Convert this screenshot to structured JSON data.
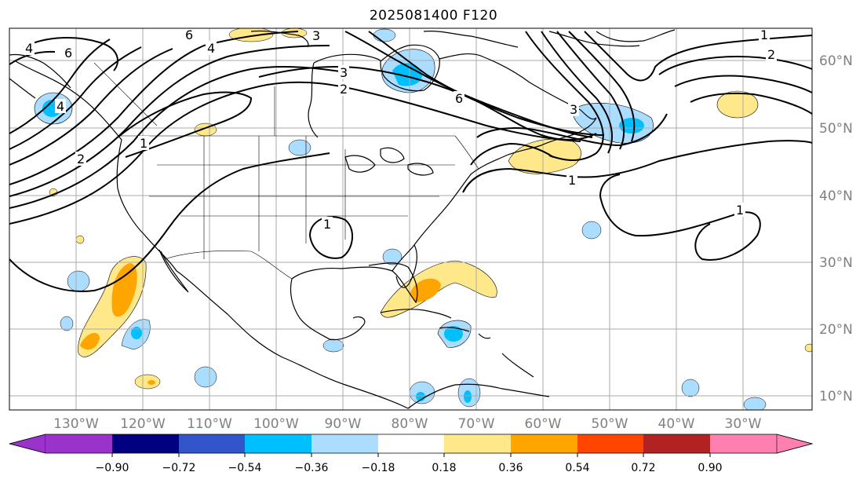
{
  "title": "2025081400 F120",
  "map": {
    "projection": "Mercator",
    "extent": {
      "lon": [
        -140,
        -20
      ],
      "lat": [
        8,
        66
      ]
    },
    "gridlines": true,
    "lon_labels": [
      "130°W",
      "120°W",
      "110°W",
      "100°W",
      "90°W",
      "80°W",
      "70°W",
      "60°W",
      "50°W",
      "40°W",
      "30°W"
    ],
    "lat_labels": [
      "60°N",
      "50°N",
      "40°N",
      "30°N",
      "20°N",
      "10°N"
    ],
    "contour_labels": [
      "4",
      "6",
      "6",
      "4",
      "3",
      "3",
      "2",
      "1",
      "2",
      "1",
      "1",
      "1",
      "1",
      "2",
      "4",
      "3",
      "6"
    ],
    "colorbar": {
      "ticks": [
        "−0.90",
        "−0.72",
        "−0.54",
        "−0.36",
        "−0.18",
        "0.18",
        "0.36",
        "0.54",
        "0.72",
        "0.90"
      ],
      "colors": [
        "#9933cc",
        "#000080",
        "#3355cc",
        "#00bfff",
        "#aaddff",
        "#ffffff",
        "#ffe88a",
        "#ffa500",
        "#ff4500",
        "#b22222",
        "#ff80b0"
      ],
      "extend": "both"
    }
  }
}
